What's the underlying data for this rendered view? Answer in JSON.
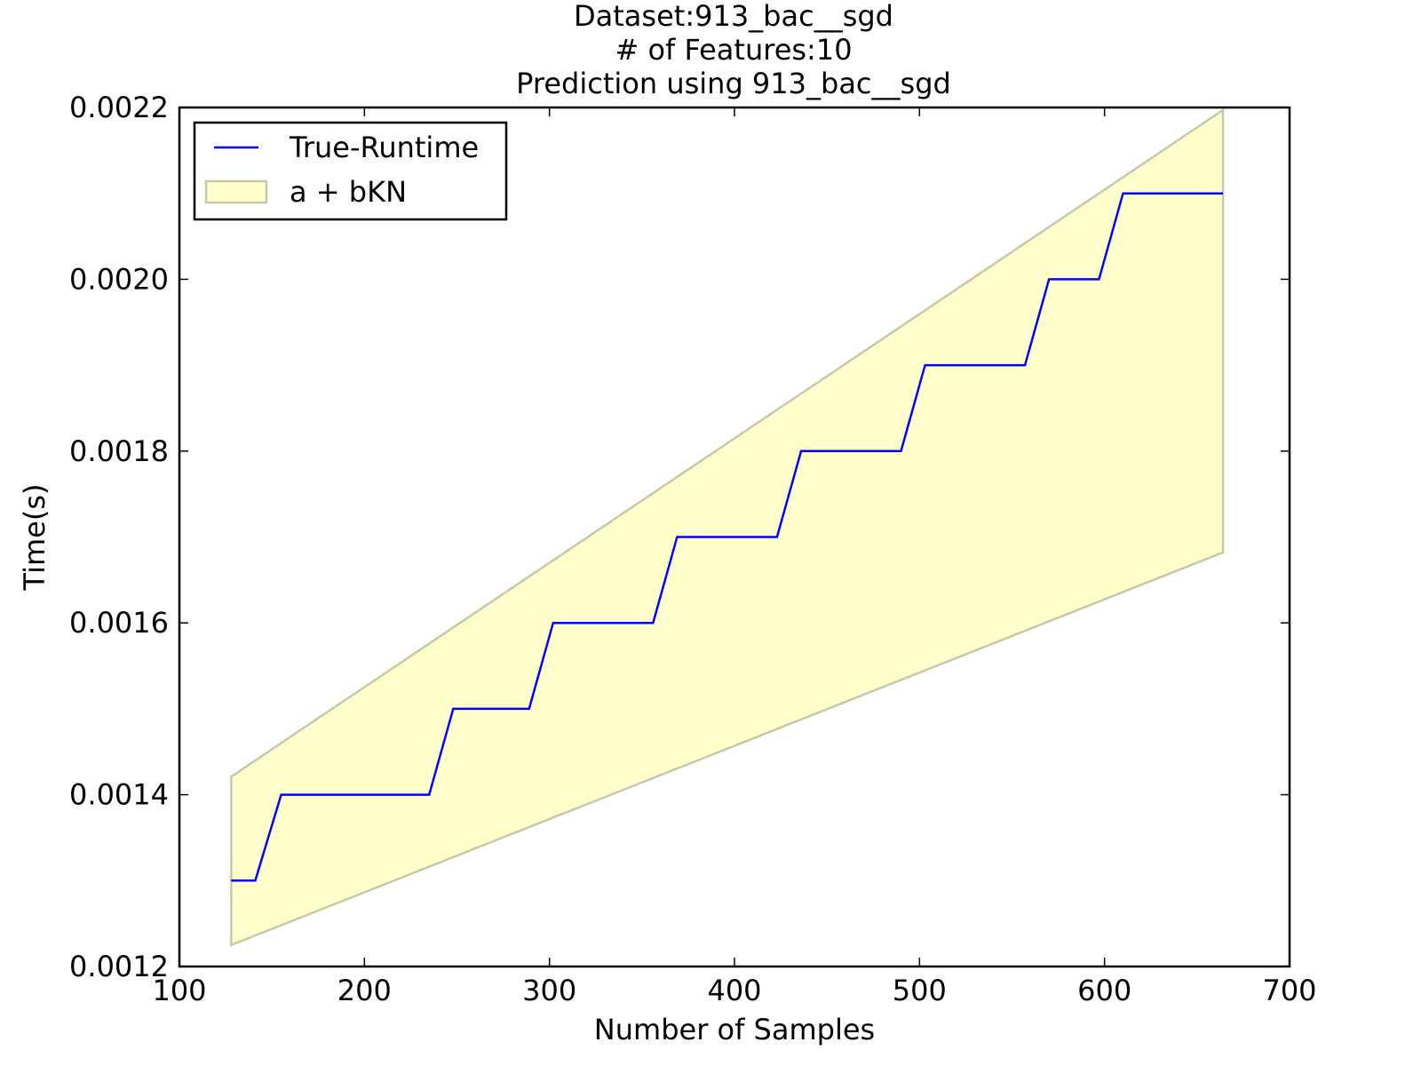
{
  "chart_data": {
    "type": "line",
    "title_lines": [
      "Dataset:913_bac__sgd",
      "# of Features:10",
      "Prediction using 913_bac__sgd"
    ],
    "xlabel": "Number of Samples",
    "ylabel": "Time(s)",
    "xlim": [
      100,
      700
    ],
    "ylim": [
      0.0012,
      0.0022
    ],
    "x_ticks": [
      100,
      200,
      300,
      400,
      500,
      600,
      700
    ],
    "x_tick_labels": [
      "100",
      "200",
      "300",
      "400",
      "500",
      "600",
      "700"
    ],
    "y_ticks": [
      0.0012,
      0.0014,
      0.0016,
      0.0018,
      0.002,
      0.0022
    ],
    "y_tick_labels": [
      "0.0012",
      "0.0014",
      "0.0016",
      "0.0018",
      "0.0020",
      "0.0022"
    ],
    "grid": false,
    "legend_position": "top-left",
    "series": [
      {
        "name": "True-Runtime",
        "color": "#0000ff",
        "x": [
          128,
          141,
          155,
          235,
          248,
          289,
          302,
          356,
          369,
          423,
          436,
          490,
          503,
          557,
          570,
          597,
          610,
          664
        ],
        "y": [
          0.0013,
          0.0013,
          0.0014,
          0.0014,
          0.0015,
          0.0015,
          0.0016,
          0.0016,
          0.0017,
          0.0017,
          0.0018,
          0.0018,
          0.0019,
          0.0019,
          0.002,
          0.002,
          0.0021,
          0.0021
        ]
      }
    ],
    "band": {
      "name": "a + bKN",
      "fill": "#ffffcc",
      "edge": "#c8c8a8",
      "x": [
        128,
        664
      ],
      "upper": [
        0.001421,
        0.002197
      ],
      "lower": [
        0.001225,
        0.001682
      ]
    }
  }
}
